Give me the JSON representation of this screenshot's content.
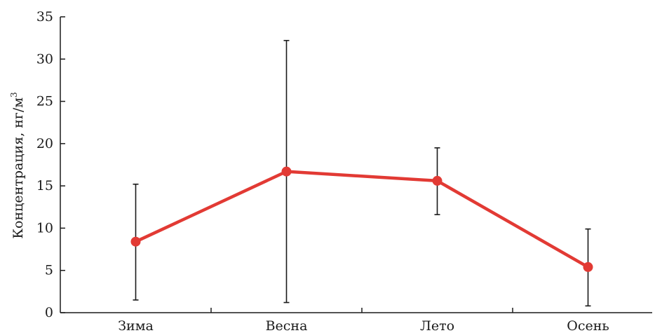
{
  "chart_data": {
    "type": "line",
    "title": "",
    "xlabel": "",
    "ylabel": "Концентрация, нг/м",
    "ylabel_superscript": "3",
    "categories": [
      "Зима",
      "Весна",
      "Лето",
      "Осень"
    ],
    "series": [
      {
        "values": [
          8.4,
          16.7,
          15.6,
          5.4
        ],
        "error_low": [
          1.5,
          1.2,
          11.6,
          0.8
        ],
        "error_high": [
          15.2,
          32.2,
          19.5,
          9.9
        ],
        "color": "#e23a34"
      }
    ],
    "ylim": [
      0,
      35
    ],
    "yticks": [
      "0",
      "5",
      "10",
      "15",
      "20",
      "25",
      "30",
      "35"
    ],
    "grid": false,
    "legend": "none",
    "error_bar_color": "#1a1a1a"
  }
}
